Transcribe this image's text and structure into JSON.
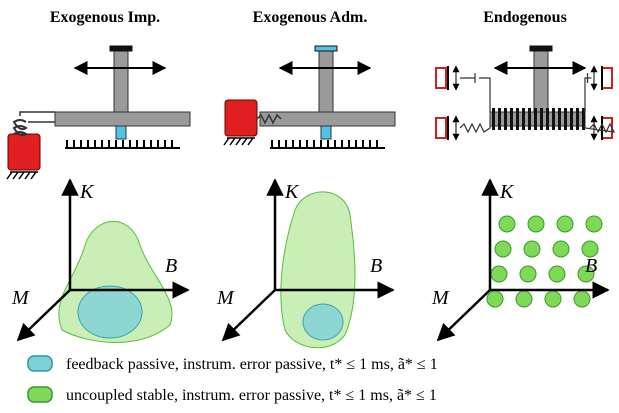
{
  "panels": [
    {
      "title": "Exogenous Imp.",
      "axes": {
        "vertical": "K",
        "horizontal": "B",
        "depth": "M"
      }
    },
    {
      "title": "Exogenous Adm.",
      "axes": {
        "vertical": "K",
        "horizontal": "B",
        "depth": "M"
      }
    },
    {
      "title": "Endogenous",
      "axes": {
        "vertical": "K",
        "horizontal": "B",
        "depth": "M"
      }
    }
  ],
  "legend": [
    {
      "label": "feedback passive, instrum. error passive, t* ≤ 1 ms, ã* ≤ 1"
    },
    {
      "label": "uncoupled stable, instrum. error passive, t* ≤ 1 ms, ã* ≤ 1"
    }
  ]
}
